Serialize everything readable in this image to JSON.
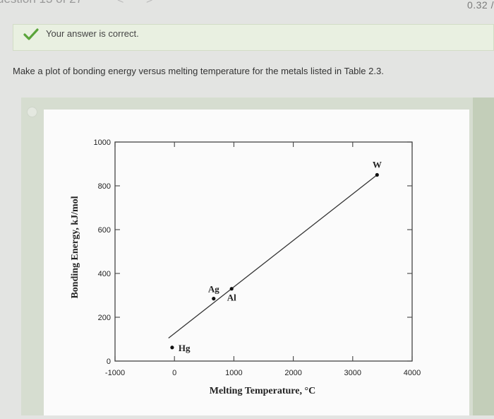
{
  "nav": {
    "question_counter": "uestion 13 of 27",
    "prev_icon": "<",
    "next_icon": ">",
    "score": "0.32 /"
  },
  "feedback": {
    "text": "Your answer is correct.",
    "icon": "check-icon",
    "accent": "#5aa43a",
    "background": "#e9f0e1"
  },
  "prompt": "Make a plot of bonding energy versus melting temperature for the metals listed in Table 2.3.",
  "chart_data": {
    "type": "scatter",
    "xlabel": "Melting Temperature, °C",
    "ylabel": "Bonding Energy, kJ/mol",
    "xlim": [
      -1000,
      4000
    ],
    "ylim": [
      0,
      1000
    ],
    "x_ticks": [
      -1000,
      0,
      1000,
      2000,
      3000,
      4000
    ],
    "y_ticks": [
      0,
      200,
      400,
      600,
      800,
      1000
    ],
    "points": [
      {
        "label": "Hg",
        "x": -39,
        "y": 62
      },
      {
        "label": "Ag",
        "x": 660,
        "y": 285
      },
      {
        "label": "Al",
        "x": 962,
        "y": 330
      },
      {
        "label": "W",
        "x": 3410,
        "y": 850
      }
    ],
    "fit_line": {
      "x": [
        -100,
        3410
      ],
      "y": [
        105,
        850
      ]
    },
    "grid": false,
    "legend": "none"
  }
}
